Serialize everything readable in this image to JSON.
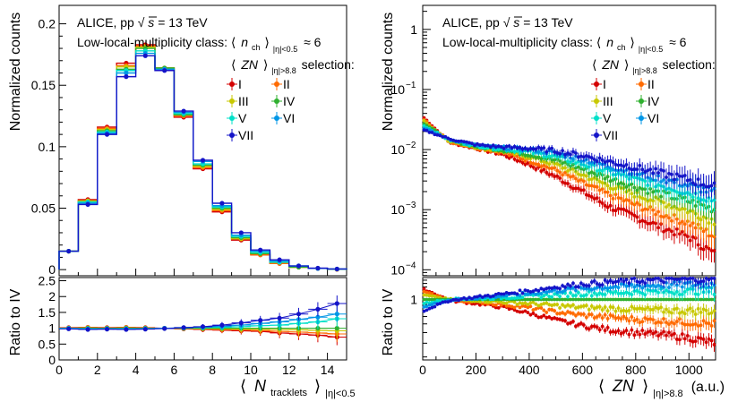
{
  "chart_data": [
    {
      "type": "histogram",
      "panel": "left-top",
      "title": "ALICE, pp √s = 13 TeV",
      "label_experiment": "ALICE, pp",
      "label_sqrt": "√",
      "label_s": "s",
      "label_energy": "= 13 TeV",
      "subtitle_prefix": "Low-local-multiplicity class: ⟨",
      "subtitle_n": "n",
      "subtitle_ch": "ch",
      "subtitle_rangle": "⟩",
      "subtitle_sub": "|η|<0.5",
      "subtitle_suffix": "≈ 6",
      "legend_title_open": "⟨",
      "legend_title_zn": "ZN",
      "legend_title_close": "⟩",
      "legend_title_sub": "|η|>8.8",
      "legend_title_suffix": "selection:",
      "ylabel": "Normalized counts",
      "ylim": [
        -0.005,
        0.215
      ],
      "yticks": [
        "0",
        "0.05",
        "0.1",
        "0.15",
        "0.2"
      ],
      "bin_edges": [
        0,
        1,
        2,
        3,
        4,
        5,
        6,
        7,
        8,
        9,
        10,
        11,
        12,
        13,
        14,
        15
      ],
      "series": [
        {
          "name": "I",
          "color": "#d40000",
          "values": [
            0.015,
            0.057,
            0.116,
            0.168,
            0.183,
            0.164,
            0.124,
            0.082,
            0.047,
            0.024,
            0.012,
            0.005,
            0.002,
            0.001,
            0.0003
          ]
        },
        {
          "name": "II",
          "color": "#ff6a00",
          "values": [
            0.015,
            0.056,
            0.115,
            0.166,
            0.182,
            0.164,
            0.125,
            0.083,
            0.048,
            0.025,
            0.012,
            0.005,
            0.002,
            0.001,
            0.0003
          ]
        },
        {
          "name": "III",
          "color": "#c8c800",
          "values": [
            0.015,
            0.056,
            0.114,
            0.165,
            0.181,
            0.164,
            0.126,
            0.084,
            0.049,
            0.025,
            0.013,
            0.006,
            0.002,
            0.001,
            0.0004
          ]
        },
        {
          "name": "IV",
          "color": "#2fb02f",
          "values": [
            0.015,
            0.055,
            0.113,
            0.163,
            0.18,
            0.164,
            0.126,
            0.085,
            0.05,
            0.026,
            0.013,
            0.006,
            0.002,
            0.001,
            0.0004
          ]
        },
        {
          "name": "V",
          "color": "#00e0c8",
          "values": [
            0.015,
            0.055,
            0.112,
            0.162,
            0.178,
            0.163,
            0.127,
            0.086,
            0.051,
            0.027,
            0.014,
            0.006,
            0.003,
            0.001,
            0.0004
          ]
        },
        {
          "name": "VI",
          "color": "#0096e6",
          "values": [
            0.015,
            0.054,
            0.111,
            0.16,
            0.176,
            0.163,
            0.128,
            0.088,
            0.052,
            0.028,
            0.015,
            0.007,
            0.003,
            0.001,
            0.0005
          ]
        },
        {
          "name": "VII",
          "color": "#1414c8",
          "values": [
            0.015,
            0.053,
            0.11,
            0.157,
            0.174,
            0.162,
            0.129,
            0.089,
            0.054,
            0.03,
            0.016,
            0.008,
            0.003,
            0.0012,
            0.0005
          ]
        }
      ]
    },
    {
      "type": "scatter",
      "panel": "left-ratio",
      "ylabel": "Ratio to IV",
      "xlabel_open": "⟨",
      "xlabel_n": "N",
      "xlabel_sub": "tracklets",
      "xlabel_close": "⟩",
      "xlabel_sub2": "|η|<0.5",
      "xlim": [
        0,
        15
      ],
      "ylim": [
        0,
        2.6
      ],
      "xticks": [
        "0",
        "2",
        "4",
        "6",
        "8",
        "10",
        "12",
        "14"
      ],
      "yticks": [
        "0",
        "0.5",
        "1",
        "1.5",
        "2",
        "2.5"
      ],
      "x": [
        0.5,
        1.5,
        2.5,
        3.5,
        4.5,
        5.5,
        6.5,
        7.5,
        8.5,
        9.5,
        10.5,
        11.5,
        12.5,
        13.5,
        14.5
      ],
      "series": [
        {
          "name": "I",
          "color": "#d40000",
          "values": [
            1.02,
            1.03,
            1.02,
            1.03,
            1.02,
            1.0,
            0.98,
            0.96,
            0.94,
            0.92,
            0.9,
            0.85,
            0.82,
            0.78,
            0.72
          ]
        },
        {
          "name": "II",
          "color": "#ff6a00",
          "values": [
            1.01,
            1.02,
            1.01,
            1.02,
            1.01,
            1.0,
            0.99,
            0.98,
            0.96,
            0.95,
            0.93,
            0.9,
            0.88,
            0.85,
            0.82
          ]
        },
        {
          "name": "III",
          "color": "#c8c800",
          "values": [
            1.0,
            1.01,
            1.0,
            1.01,
            1.0,
            1.0,
            1.0,
            0.99,
            0.98,
            0.97,
            0.97,
            0.96,
            0.95,
            0.93,
            0.92
          ]
        },
        {
          "name": "IV",
          "color": "#2fb02f",
          "values": [
            1,
            1,
            1,
            1,
            1,
            1,
            1,
            1,
            1,
            1,
            1,
            1,
            1,
            1,
            1
          ]
        },
        {
          "name": "V",
          "color": "#00e0c8",
          "values": [
            1.0,
            0.99,
            0.99,
            0.99,
            0.99,
            1.0,
            1.01,
            1.02,
            1.03,
            1.05,
            1.08,
            1.1,
            1.15,
            1.2,
            1.3
          ]
        },
        {
          "name": "VI",
          "color": "#0096e6",
          "values": [
            0.99,
            0.98,
            0.98,
            0.98,
            0.98,
            1.0,
            1.02,
            1.04,
            1.06,
            1.1,
            1.15,
            1.2,
            1.28,
            1.35,
            1.45
          ]
        },
        {
          "name": "VII",
          "color": "#1414c8",
          "values": [
            0.98,
            0.96,
            0.97,
            0.96,
            0.97,
            0.99,
            1.02,
            1.05,
            1.1,
            1.17,
            1.25,
            1.32,
            1.45,
            1.6,
            1.78
          ]
        }
      ]
    },
    {
      "type": "scatter",
      "panel": "right-top",
      "title": "ALICE, pp √s = 13 TeV",
      "ylabel": "Normalized counts",
      "yscale": "log",
      "ylim_log10": [
        -4.1,
        0.4
      ],
      "yticks": [
        {
          "mantissa": "1",
          "exp": ""
        },
        {
          "mantissa": "10",
          "exp": "−1"
        },
        {
          "mantissa": "10",
          "exp": "−2"
        },
        {
          "mantissa": "10",
          "exp": "−3"
        },
        {
          "mantissa": "10",
          "exp": "−4"
        }
      ],
      "xlim": [
        0,
        1100
      ],
      "curve_description": "each series: log10(counts) at x = 0, 100, ..., 1100",
      "series": [
        {
          "name": "I",
          "color": "#d40000",
          "log10_counts": [
            -1.45,
            -1.88,
            -1.98,
            -2.08,
            -2.25,
            -2.45,
            -2.7,
            -2.95,
            -3.12,
            -3.3,
            -3.45,
            -3.75
          ]
        },
        {
          "name": "II",
          "color": "#ff6a00",
          "log10_counts": [
            -1.48,
            -1.87,
            -1.97,
            -2.05,
            -2.18,
            -2.34,
            -2.55,
            -2.75,
            -2.92,
            -3.08,
            -3.22,
            -3.45
          ]
        },
        {
          "name": "III",
          "color": "#c8c800",
          "log10_counts": [
            -1.51,
            -1.86,
            -1.96,
            -2.03,
            -2.12,
            -2.25,
            -2.42,
            -2.6,
            -2.75,
            -2.88,
            -3.02,
            -3.2
          ]
        },
        {
          "name": "IV",
          "color": "#2fb02f",
          "log10_counts": [
            -1.55,
            -1.85,
            -1.95,
            -2.01,
            -2.08,
            -2.18,
            -2.32,
            -2.48,
            -2.62,
            -2.74,
            -2.86,
            -3.0
          ]
        },
        {
          "name": "V",
          "color": "#00e0c8",
          "log10_counts": [
            -1.59,
            -1.84,
            -1.94,
            -1.99,
            -2.04,
            -2.12,
            -2.24,
            -2.37,
            -2.5,
            -2.6,
            -2.72,
            -2.85
          ]
        },
        {
          "name": "VI",
          "color": "#0096e6",
          "log10_counts": [
            -1.63,
            -1.83,
            -1.93,
            -1.97,
            -2.0,
            -2.06,
            -2.16,
            -2.28,
            -2.39,
            -2.49,
            -2.6,
            -2.72
          ]
        },
        {
          "name": "VII",
          "color": "#1414c8",
          "log10_counts": [
            -1.67,
            -1.82,
            -1.92,
            -1.96,
            -1.98,
            -2.02,
            -2.1,
            -2.2,
            -2.3,
            -2.4,
            -2.5,
            -2.62
          ]
        }
      ]
    },
    {
      "type": "scatter",
      "panel": "right-ratio",
      "ylabel": "Ratio to IV",
      "xlabel_open": "⟨",
      "xlabel_zn": "ZN",
      "xlabel_close": "⟩",
      "xlabel_sub": "|η|>8.8",
      "xlabel_unit": "(a.u.)",
      "xlim": [
        0,
        1100
      ],
      "ylim_log10": [
        -0.55,
        0.2
      ],
      "xticks": [
        "0",
        "200",
        "400",
        "600",
        "800",
        "1000"
      ],
      "yticks": [
        "1"
      ],
      "curve_description": "each series: ratio to IV at x = 0, 100, ..., 1100",
      "series": [
        {
          "name": "I",
          "color": "#d40000",
          "ratios": [
            1.25,
            0.98,
            0.92,
            0.85,
            0.75,
            0.65,
            0.58,
            0.53,
            0.5,
            0.48,
            0.45,
            0.4
          ]
        },
        {
          "name": "II",
          "color": "#ff6a00",
          "ratios": [
            1.18,
            0.99,
            0.95,
            0.9,
            0.84,
            0.77,
            0.72,
            0.69,
            0.66,
            0.64,
            0.62,
            0.6
          ]
        },
        {
          "name": "III",
          "color": "#c8c800",
          "ratios": [
            1.1,
            1.0,
            0.98,
            0.95,
            0.92,
            0.88,
            0.85,
            0.83,
            0.81,
            0.8,
            0.79,
            0.78
          ]
        },
        {
          "name": "IV",
          "color": "#2fb02f",
          "ratios": [
            1,
            1,
            1,
            1,
            1,
            1,
            1,
            1,
            1,
            1,
            1,
            1
          ]
        },
        {
          "name": "V",
          "color": "#00e0c8",
          "ratios": [
            0.92,
            1.0,
            1.02,
            1.04,
            1.07,
            1.1,
            1.13,
            1.15,
            1.17,
            1.18,
            1.19,
            1.2
          ]
        },
        {
          "name": "VI",
          "color": "#0096e6",
          "ratios": [
            0.85,
            0.99,
            1.03,
            1.08,
            1.13,
            1.2,
            1.26,
            1.3,
            1.33,
            1.35,
            1.37,
            1.38
          ]
        },
        {
          "name": "VII",
          "color": "#1414c8",
          "ratios": [
            0.78,
            0.98,
            1.05,
            1.12,
            1.2,
            1.3,
            1.38,
            1.44,
            1.48,
            1.51,
            1.53,
            1.55
          ]
        }
      ]
    }
  ]
}
